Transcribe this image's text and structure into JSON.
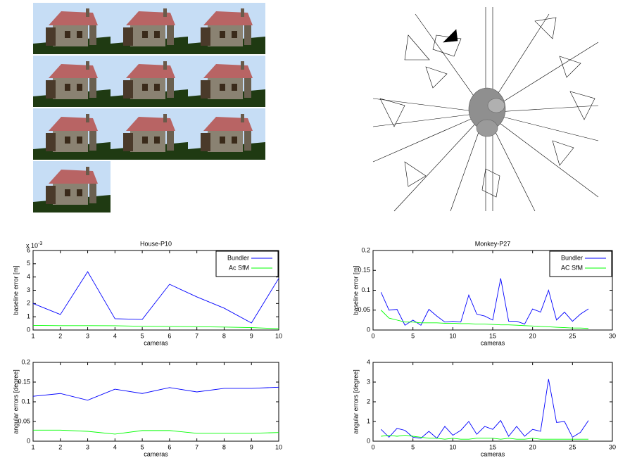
{
  "chart_data": [
    {
      "type": "line",
      "title": "House-P10",
      "xlabel": "cameras",
      "ylabel": "baseline error [m]",
      "y_exponent_label": {
        "base": "x 10",
        "exponent": "-3"
      },
      "x": [
        1,
        2,
        3,
        4,
        5,
        6,
        7,
        8,
        9,
        10
      ],
      "xlim": [
        1,
        10
      ],
      "xticks": [
        1,
        2,
        3,
        4,
        5,
        6,
        7,
        8,
        9,
        10
      ],
      "ylim": [
        0,
        6
      ],
      "yticks": [
        0,
        1,
        2,
        3,
        4,
        5,
        6
      ],
      "legend": "northeast",
      "series": [
        {
          "name": "Bundler",
          "color": "#0000ff",
          "values": [
            2.0,
            1.17,
            4.4,
            0.85,
            0.8,
            3.45,
            2.5,
            1.65,
            0.53,
            3.9
          ]
        },
        {
          "name": "Ac SfM",
          "color": "#00ff00",
          "values": [
            0.35,
            0.33,
            0.33,
            0.32,
            0.28,
            0.27,
            0.25,
            0.22,
            0.18,
            0.1
          ]
        }
      ]
    },
    {
      "type": "line",
      "xlabel": "cameras",
      "ylabel": "angular errors [degree]",
      "x": [
        1,
        2,
        3,
        4,
        5,
        6,
        7,
        8,
        9,
        10
      ],
      "xlim": [
        1,
        10
      ],
      "xticks": [
        1,
        2,
        3,
        4,
        5,
        6,
        7,
        8,
        9,
        10
      ],
      "ylim": [
        0,
        0.2
      ],
      "yticks": [
        0,
        0.05,
        0.1,
        0.15,
        0.2
      ],
      "series": [
        {
          "color": "#0000ff",
          "values": [
            0.114,
            0.121,
            0.104,
            0.132,
            0.121,
            0.136,
            0.125,
            0.134,
            0.134,
            0.137
          ]
        },
        {
          "color": "#00ff00",
          "values": [
            0.028,
            0.028,
            0.025,
            0.018,
            0.027,
            0.027,
            0.02,
            0.02,
            0.02,
            0.022
          ]
        }
      ]
    },
    {
      "type": "line",
      "title": "Monkey-P27",
      "xlabel": "cameras",
      "ylabel": "baseline error [m]",
      "x": [
        1,
        2,
        3,
        4,
        5,
        6,
        7,
        8,
        9,
        10,
        11,
        12,
        13,
        14,
        15,
        16,
        17,
        18,
        19,
        20,
        21,
        22,
        23,
        24,
        25,
        26,
        27
      ],
      "xlim": [
        0,
        30
      ],
      "xticks": [
        0,
        5,
        10,
        15,
        20,
        25,
        30
      ],
      "ylim": [
        0,
        0.2
      ],
      "yticks": [
        0,
        0.05,
        0.1,
        0.15,
        0.2
      ],
      "legend": "northeast",
      "series": [
        {
          "name": "Bundler",
          "color": "#0000ff",
          "values": [
            0.095,
            0.05,
            0.052,
            0.012,
            0.025,
            0.012,
            0.052,
            0.035,
            0.02,
            0.022,
            0.02,
            0.088,
            0.04,
            0.035,
            0.025,
            0.13,
            0.022,
            0.022,
            0.015,
            0.053,
            0.045,
            0.1,
            0.025,
            0.045,
            0.022,
            0.04,
            0.053
          ]
        },
        {
          "name": "AC SfM",
          "color": "#00ff00",
          "values": [
            0.05,
            0.03,
            0.025,
            0.02,
            0.02,
            0.018,
            0.018,
            0.018,
            0.017,
            0.017,
            0.016,
            0.016,
            0.015,
            0.015,
            0.014,
            0.013,
            0.013,
            0.012,
            0.011,
            0.01,
            0.009,
            0.008,
            0.007,
            0.006,
            0.005,
            0.005,
            0.004
          ]
        }
      ]
    },
    {
      "type": "line",
      "xlabel": "cameras",
      "ylabel": "angular errors [degree]",
      "x": [
        1,
        2,
        3,
        4,
        5,
        6,
        7,
        8,
        9,
        10,
        11,
        12,
        13,
        14,
        15,
        16,
        17,
        18,
        19,
        20,
        21,
        22,
        23,
        24,
        25,
        26,
        27
      ],
      "xlim": [
        0,
        30
      ],
      "xticks": [
        0,
        5,
        10,
        15,
        20,
        25,
        30
      ],
      "ylim": [
        0,
        4
      ],
      "yticks": [
        0,
        1,
        2,
        3,
        4
      ],
      "series": [
        {
          "color": "#0000ff",
          "values": [
            0.6,
            0.2,
            0.65,
            0.55,
            0.2,
            0.15,
            0.5,
            0.15,
            0.75,
            0.3,
            0.55,
            1.0,
            0.35,
            0.75,
            0.6,
            1.05,
            0.25,
            0.75,
            0.25,
            0.6,
            0.5,
            3.15,
            0.95,
            1.0,
            0.2,
            0.45,
            1.05
          ]
        },
        {
          "color": "#00ff00",
          "values": [
            0.25,
            0.3,
            0.25,
            0.3,
            0.25,
            0.2,
            0.15,
            0.15,
            0.1,
            0.15,
            0.1,
            0.1,
            0.15,
            0.15,
            0.15,
            0.1,
            0.15,
            0.1,
            0.1,
            0.15,
            0.1,
            0.1,
            0.1,
            0.1,
            0.1,
            0.1,
            0.1
          ]
        }
      ]
    }
  ]
}
